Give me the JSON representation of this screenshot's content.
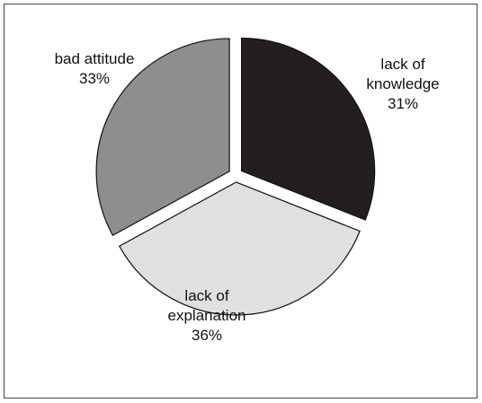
{
  "chart_data": {
    "type": "pie",
    "title": "",
    "slices": [
      {
        "label_lines": [
          "lack of",
          "knowledge"
        ],
        "percent_text": "31%",
        "value": 31,
        "color": "#231f20"
      },
      {
        "label_lines": [
          "lack of",
          "explanation"
        ],
        "percent_text": "36%",
        "value": 36,
        "color": "#e0e0e0"
      },
      {
        "label_lines": [
          "bad attitude"
        ],
        "percent_text": "33%",
        "value": 33,
        "color": "#8e8e8e"
      }
    ],
    "exploded": true,
    "legend": "none"
  }
}
